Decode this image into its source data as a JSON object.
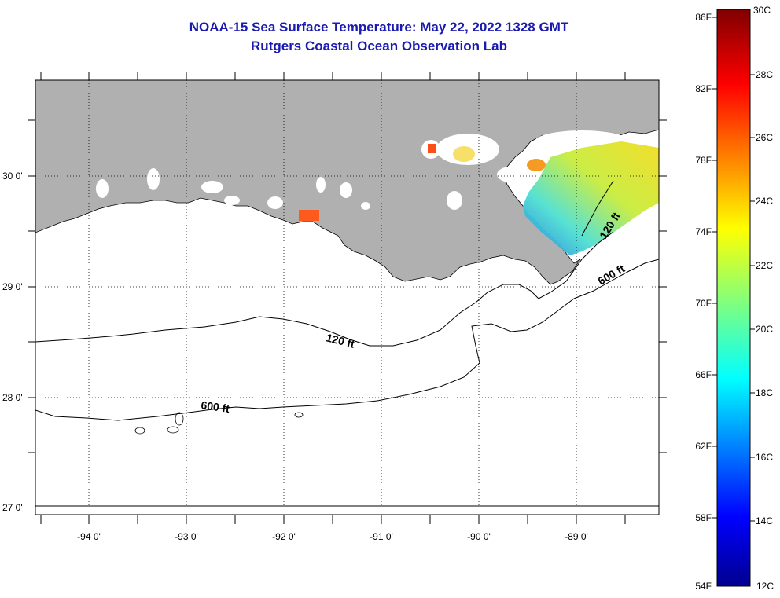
{
  "title": {
    "line1": "NOAA-15 Sea Surface Temperature:  May 22, 2022 1328 GMT",
    "line2": "Rutgers Coastal Ocean Observation Lab"
  },
  "map": {
    "lat_labels": [
      "30 0'",
      "29 0'",
      "28 0'",
      "27 0'"
    ],
    "lon_labels": [
      "-94 0'",
      "-93 0'",
      "-92 0'",
      "-91 0'",
      "-90 0'",
      "-89 0'"
    ],
    "contour_labels": [
      "120 ft",
      "600 ft",
      "120 ft",
      "600 ft"
    ],
    "colors": {
      "land": "#b0b0b0",
      "ocean": "#ffffff",
      "contour": "#000000"
    }
  },
  "colorbar": {
    "f_labels": [
      "86F",
      "82F",
      "78F",
      "74F",
      "70F",
      "66F",
      "62F",
      "58F",
      "54F"
    ],
    "c_labels": [
      "30C",
      "28C",
      "26C",
      "24C",
      "22C",
      "20C",
      "18C",
      "16C",
      "14C",
      "12C"
    ]
  }
}
